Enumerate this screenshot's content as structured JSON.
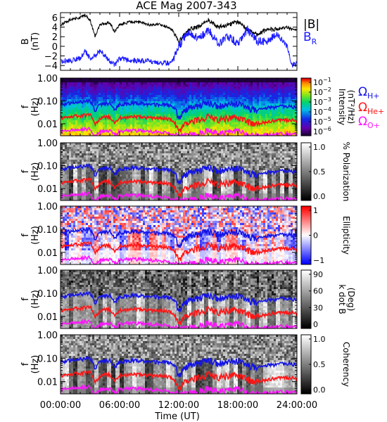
{
  "title": "ACE Mag 2007-343",
  "x_axis": {
    "label": "Time (UT)",
    "ticks": [
      "00:00:00",
      "06:00:00",
      "12:00:00",
      "18:00:00",
      "24:00:00"
    ],
    "range_hours": [
      0,
      24
    ]
  },
  "colors": {
    "b_mag": "#000000",
    "b_r": "#1a1aff",
    "omega_h": "#1414e6",
    "omega_he": "#ff1414",
    "omega_o": "#ff14ff"
  },
  "gyro_labels": {
    "h": {
      "symbol": "Ω",
      "sub": "H+"
    },
    "he": {
      "symbol": "Ω",
      "sub": "He+"
    },
    "o": {
      "symbol": "Ω",
      "sub": "O+"
    }
  },
  "chart_data": [
    {
      "type": "line",
      "panel": "magnetic-field",
      "ylabel": "B",
      "yunit": "(nT)",
      "ylim": [
        -5,
        7
      ],
      "yticks": [
        "6",
        "4",
        "2",
        "0",
        "−2",
        "−4"
      ],
      "ytick_values": [
        6,
        4,
        2,
        0,
        -2,
        -4
      ],
      "legend": [
        {
          "label": "|B|",
          "sub": "",
          "color": "#000000"
        },
        {
          "label": "B",
          "sub": "R",
          "color": "#1a1aff"
        }
      ],
      "x_hours": [
        0,
        1,
        2,
        2.5,
        3,
        3.5,
        4,
        5,
        5.5,
        6,
        7,
        8,
        9,
        10,
        11,
        11.5,
        12,
        13,
        14,
        15,
        16,
        17,
        18,
        19,
        20,
        21,
        22,
        23,
        23.5,
        24
      ],
      "series": [
        {
          "name": "|B|",
          "values": [
            4.5,
            5.5,
            6.0,
            6.5,
            5.5,
            2.0,
            4.5,
            5.0,
            3.0,
            4.5,
            5.0,
            5.0,
            4.5,
            4.5,
            4.0,
            3.0,
            1.0,
            3.5,
            4.0,
            5.5,
            4.0,
            4.5,
            5.0,
            3.5,
            2.5,
            3.5,
            3.5,
            4.0,
            3.5,
            3.5
          ]
        },
        {
          "name": "B_R",
          "values": [
            -3.0,
            -3.0,
            -2.5,
            -1.0,
            -2.5,
            -2.0,
            -1.0,
            -3.0,
            -4.0,
            -2.5,
            -3.0,
            -3.0,
            -3.0,
            -3.5,
            -3.5,
            -2.5,
            0.0,
            3.0,
            1.5,
            3.5,
            0.5,
            2.0,
            0.5,
            3.5,
            1.0,
            1.0,
            2.5,
            0.0,
            -4.0,
            -3.5
          ]
        }
      ]
    },
    {
      "type": "heatmap",
      "panel": "intensity",
      "ylabel": "f",
      "yunit": "(Hz)",
      "yscale": "log",
      "ylim": [
        0.003,
        1.0
      ],
      "yticks": [
        "1.00",
        "0.10",
        "0.01"
      ],
      "ytick_values": [
        1.0,
        0.1,
        0.01
      ],
      "colorbar": {
        "label_lines": [
          "Intensity",
          "(nT²/Hz)"
        ],
        "scale": "log",
        "range": [
          1e-06,
          0.1
        ],
        "ticks": [
          {
            "b": "10",
            "e": "−1"
          },
          {
            "b": "10",
            "e": "−2"
          },
          {
            "b": "10",
            "e": "−3"
          },
          {
            "b": "10",
            "e": "−4"
          },
          {
            "b": "10",
            "e": "−5"
          },
          {
            "b": "10",
            "e": "−6"
          }
        ],
        "colormap": "rainbow"
      }
    },
    {
      "type": "heatmap",
      "panel": "polarization",
      "ylabel": "f",
      "yunit": "(Hz)",
      "yscale": "log",
      "ylim": [
        0.003,
        1.0
      ],
      "yticks": [
        "1.00",
        "0.10",
        "0.01"
      ],
      "ytick_values": [
        1.0,
        0.1,
        0.01
      ],
      "colorbar": {
        "label_lines": [
          "% Polarization"
        ],
        "range": [
          0.0,
          1.0
        ],
        "ticks": [
          {
            "b": "1.0"
          },
          {
            "b": "0.5"
          },
          {
            "b": "0.0"
          }
        ],
        "colormap": "gray"
      }
    },
    {
      "type": "heatmap",
      "panel": "ellipticity",
      "ylabel": "f",
      "yunit": "(Hz)",
      "yscale": "log",
      "ylim": [
        0.003,
        1.0
      ],
      "yticks": [
        "1.00",
        "0.10",
        "0.01"
      ],
      "ytick_values": [
        1.0,
        0.1,
        0.01
      ],
      "colorbar": {
        "label_lines": [
          "Ellipticity"
        ],
        "range": [
          -1,
          1
        ],
        "ticks": [
          {
            "b": "1"
          },
          {
            "b": "0"
          },
          {
            "b": "−1"
          }
        ],
        "colormap": "blue-white-red"
      }
    },
    {
      "type": "heatmap",
      "panel": "k-dot-b",
      "ylabel": "f",
      "yunit": "(Hz)",
      "yscale": "log",
      "ylim": [
        0.003,
        1.0
      ],
      "yticks": [
        "1.00",
        "0.10",
        "0.01"
      ],
      "ytick_values": [
        1.0,
        0.1,
        0.01
      ],
      "colorbar": {
        "label_lines": [
          "k dot B",
          "(Deg)"
        ],
        "range": [
          0,
          90
        ],
        "ticks": [
          {
            "b": "90"
          },
          {
            "b": "60"
          },
          {
            "b": "30"
          },
          {
            "b": "0"
          }
        ],
        "colormap": "gray"
      }
    },
    {
      "type": "heatmap",
      "panel": "coherency",
      "ylabel": "f",
      "yunit": "(Hz)",
      "yscale": "log",
      "ylim": [
        0.003,
        1.0
      ],
      "yticks": [
        "1.00",
        "0.10",
        "0.01"
      ],
      "ytick_values": [
        1.0,
        0.1,
        0.01
      ],
      "colorbar": {
        "label_lines": [
          "Coherency"
        ],
        "range": [
          0.0,
          1.0
        ],
        "ticks": [
          {
            "b": "1.0"
          },
          {
            "b": "0.5"
          },
          {
            "b": "0.0"
          }
        ],
        "colormap": "gray"
      }
    }
  ],
  "gyrofrequency_overlays": {
    "x_hours": [
      0,
      1,
      2,
      3,
      3.5,
      4,
      5,
      5.5,
      6,
      7,
      8,
      9,
      10,
      11,
      11.5,
      12,
      13,
      14,
      15,
      16,
      17,
      18,
      19,
      20,
      21,
      22,
      23,
      23.5,
      24
    ],
    "series": [
      {
        "name": "H+",
        "values": [
          0.07,
          0.08,
          0.09,
          0.1,
          0.03,
          0.07,
          0.08,
          0.04,
          0.07,
          0.08,
          0.08,
          0.07,
          0.07,
          0.065,
          0.05,
          0.015,
          0.05,
          0.06,
          0.085,
          0.06,
          0.07,
          0.075,
          0.05,
          0.04,
          0.05,
          0.055,
          0.06,
          0.055,
          0.055
        ]
      },
      {
        "name": "He+",
        "values": [
          0.018,
          0.02,
          0.023,
          0.025,
          0.008,
          0.018,
          0.02,
          0.01,
          0.018,
          0.02,
          0.02,
          0.018,
          0.018,
          0.016,
          0.012,
          0.004,
          0.012,
          0.015,
          0.021,
          0.015,
          0.018,
          0.019,
          0.012,
          0.01,
          0.012,
          0.014,
          0.015,
          0.014,
          0.014
        ]
      },
      {
        "name": "O+",
        "values": [
          0.0045,
          0.005,
          0.0056,
          0.006,
          0.003,
          0.0045,
          0.005,
          0.0032,
          0.0045,
          0.005,
          0.005,
          0.0045,
          0.0045,
          0.004,
          0.0032,
          0.003,
          0.0032,
          0.0038,
          0.0052,
          0.0038,
          0.0045,
          0.0047,
          0.0032,
          0.003,
          0.0032,
          0.0035,
          0.0038,
          0.0035,
          0.0035
        ]
      }
    ]
  }
}
